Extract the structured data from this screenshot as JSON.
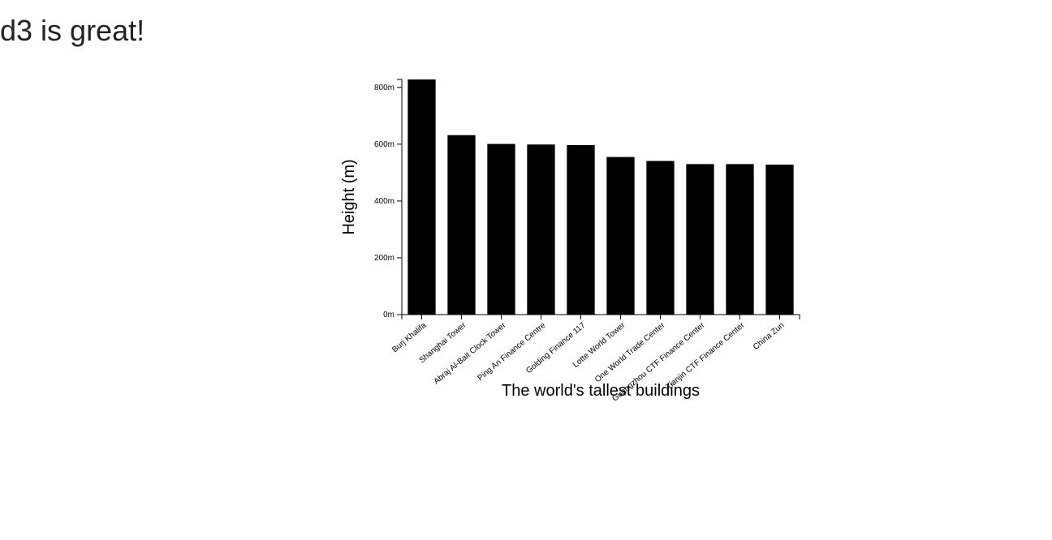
{
  "page": {
    "heading": "d3 is great!"
  },
  "colors": {
    "bar": "#000000",
    "axis": "#000000",
    "text": "#000000"
  },
  "chart_data": {
    "type": "bar",
    "categories": [
      "Burj Khalifa",
      "Shanghai Tower",
      "Abraj Al-Bait Clock Tower",
      "Ping An Finance Centre",
      "Golding Finance 117",
      "Lotte World Tower",
      "One World Trade Center",
      "Guangzhou CTF Finance Center",
      "Tianjin CTF Finance Center",
      "China Zun"
    ],
    "values": [
      828,
      632,
      601,
      599,
      597,
      555,
      541,
      530,
      530,
      528
    ],
    "xlabel": "The world's tallest buildings",
    "ylabel": "Height (m)",
    "ylim": [
      0,
      828
    ],
    "yticks": [
      0,
      200,
      400,
      600,
      800
    ],
    "ytick_labels": [
      "0m",
      "200m",
      "400m",
      "600m",
      "800m"
    ],
    "grid": false
  }
}
